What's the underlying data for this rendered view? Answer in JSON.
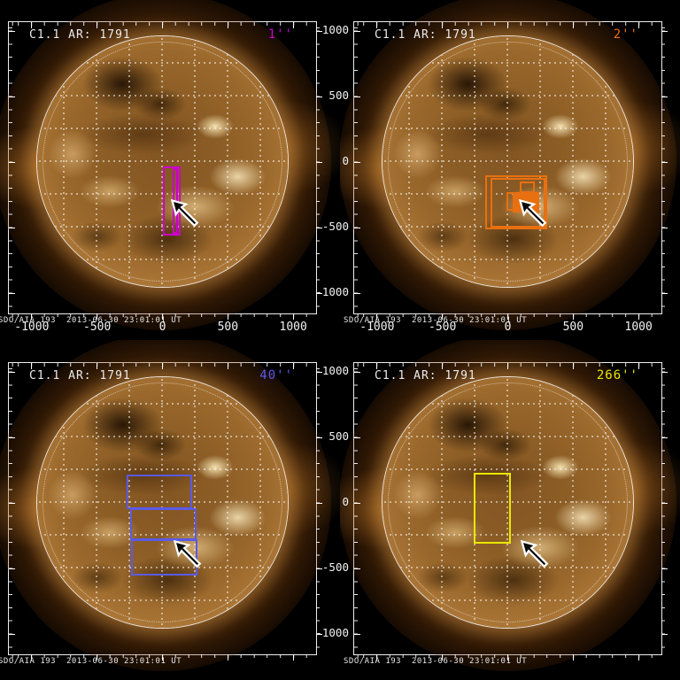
{
  "figure": {
    "background": "#000000",
    "title_repeated_on_all_panels": "C1.1 AR: 1791",
    "caption_repeated_on_all_panels": "SDO/AIA 193  2013-06-30 23:01:01 UT"
  },
  "chart_data": {
    "type": "heatmap",
    "description": "2x2 grid of SDO/AIA 193 full-disk solar images with colored field-of-view overlay rectangles at four raster scales (1'', 2'', 40'', 266''); a white-outlined black arrow in each panel points at active region AR 1791 south of disk center.",
    "shared": {
      "title": "C1.1 AR: 1791",
      "caption": "SDO/AIA 193  2013-06-30 23:01:01 UT",
      "xlim": [
        -1175,
        1175
      ],
      "ylim": [
        -1157,
        1068
      ],
      "x_ticks": [
        -1000,
        -500,
        0,
        500,
        1000
      ],
      "y_ticks": [
        1000,
        500,
        0,
        -500,
        -1000
      ],
      "units": "arcsec",
      "grid": "dotted heliographic grid over disk",
      "solar_limb_radius_arcsec": 950
    },
    "panels": [
      {
        "id": "1arcsec",
        "scale_label": "1''",
        "accent": "#cc00cc",
        "show_x_tick_labels": true,
        "show_y_tick_labels": false,
        "fov_rects": [
          {
            "x": [
              5,
              137
            ],
            "y": [
              -565,
              -35
            ],
            "fill": false
          },
          {
            "x": [
              75,
              120
            ],
            "y": [
              -550,
              -48
            ],
            "fill": false
          }
        ],
        "arrow_tip_arcsec": [
          75,
          -300
        ]
      },
      {
        "id": "2arcsec",
        "scale_label": "2''",
        "accent": "#e87010",
        "show_x_tick_labels": true,
        "show_y_tick_labels": true,
        "fov_rects": [
          {
            "x": [
              -175,
              300
            ],
            "y": [
              -515,
              -103
            ],
            "fill": false
          },
          {
            "x": [
              -130,
              285
            ],
            "y": [
              -498,
              -122
            ],
            "fill": false
          },
          {
            "x": [
              93,
              205
            ],
            "y": [
              -236,
              -149
            ],
            "fill": false
          },
          {
            "x": [
              -9,
              81
            ],
            "y": [
              -374,
              -228
            ],
            "fill": false
          },
          {
            "x": [
              36,
              239
            ],
            "y": [
              -385,
              -228
            ],
            "fill": true
          }
        ],
        "arrow_tip_arcsec": [
          100,
          -300
        ]
      },
      {
        "id": "40arcsec",
        "scale_label": "40''",
        "accent": "#5a5ae8",
        "show_x_tick_labels": false,
        "show_y_tick_labels": false,
        "fov_rects": [
          {
            "x": [
              -272,
              230
            ],
            "y": [
              -45,
              218
            ],
            "fill": false
          },
          {
            "x": [
              -245,
              264
            ],
            "y": [
              -282,
              -40
            ],
            "fill": false
          },
          {
            "x": [
              -239,
              270
            ],
            "y": [
              -554,
              -277
            ],
            "fill": false
          }
        ],
        "arrow_tip_arcsec": [
          100,
          -297
        ]
      },
      {
        "id": "266arcsec",
        "scale_label": "266''",
        "accent": "#e8e800",
        "show_x_tick_labels": false,
        "show_y_tick_labels": true,
        "fov_rects": [
          {
            "x": [
              -259,
              27
            ],
            "y": [
              -311,
              230
            ],
            "fill": false
          }
        ],
        "arrow_tip_arcsec": [
          115,
          -297
        ]
      }
    ]
  }
}
